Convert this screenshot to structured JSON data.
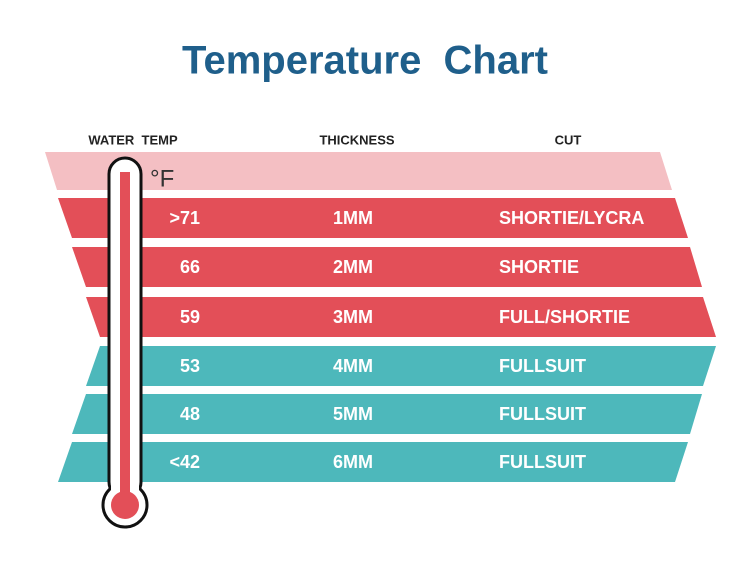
{
  "header": {
    "title": "Temperature  Chart"
  },
  "table": {
    "columns": [
      "WATER  TEMP",
      "THICKNESS",
      "CUT"
    ],
    "unit": "°F",
    "rows": [
      {
        "temp": ">71",
        "thickness": "1MM",
        "cut": "SHORTIE/LYCRA"
      },
      {
        "temp": "66",
        "thickness": "2MM",
        "cut": "SHORTIE"
      },
      {
        "temp": "59",
        "thickness": "3MM",
        "cut": "FULL/SHORTIE"
      },
      {
        "temp": "53",
        "thickness": "4MM",
        "cut": "FULLSUIT"
      },
      {
        "temp": "48",
        "thickness": "5MM",
        "cut": "FULLSUIT"
      },
      {
        "temp": "<42",
        "thickness": "6MM",
        "cut": "FULLSUIT"
      }
    ]
  }
}
